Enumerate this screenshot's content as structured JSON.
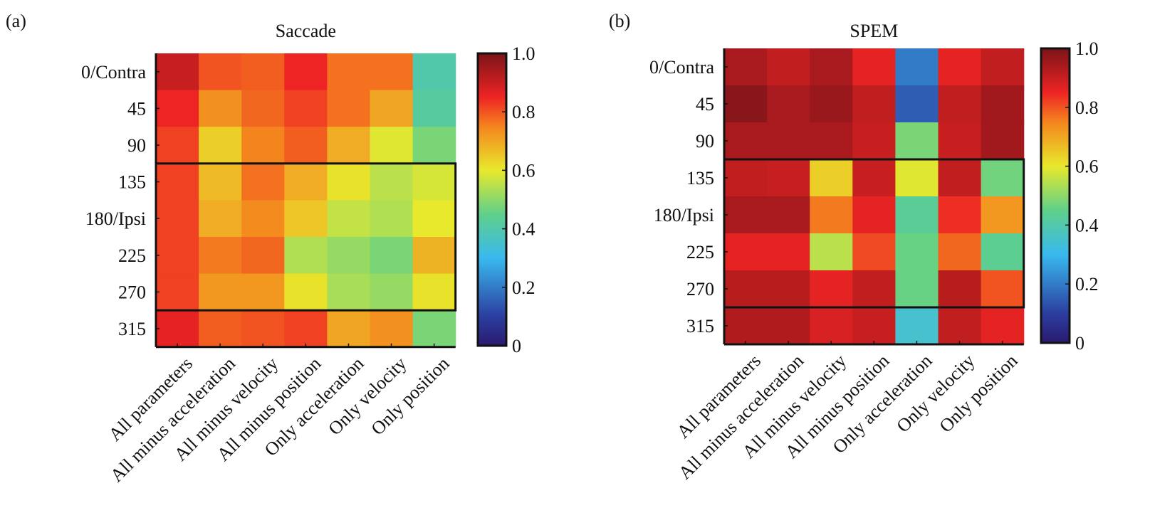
{
  "chart_data": [
    {
      "type": "heatmap",
      "panel_label": "(a)",
      "title": "Saccade",
      "rows": [
        "0/Contra",
        "45",
        "90",
        "135",
        "180/Ipsi",
        "225",
        "270",
        "315"
      ],
      "columns": [
        "All parameters",
        "All minus acceleration",
        "All minus velocity",
        "All minus position",
        "Only acceleration",
        "Only velocity",
        "Only position"
      ],
      "values": [
        [
          0.9,
          0.8,
          0.79,
          0.85,
          0.77,
          0.77,
          0.4
        ],
        [
          0.85,
          0.73,
          0.78,
          0.82,
          0.77,
          0.7,
          0.42
        ],
        [
          0.82,
          0.64,
          0.75,
          0.79,
          0.69,
          0.59,
          0.48
        ],
        [
          0.82,
          0.67,
          0.77,
          0.69,
          0.61,
          0.55,
          0.58
        ],
        [
          0.82,
          0.69,
          0.74,
          0.65,
          0.56,
          0.54,
          0.6
        ],
        [
          0.82,
          0.76,
          0.78,
          0.54,
          0.51,
          0.48,
          0.68
        ],
        [
          0.82,
          0.72,
          0.72,
          0.61,
          0.53,
          0.51,
          0.61
        ],
        [
          0.86,
          0.79,
          0.8,
          0.82,
          0.7,
          0.73,
          0.48
        ]
      ],
      "highlight_rows": [
        3,
        6
      ],
      "colorbar": {
        "min": 0,
        "max": 1,
        "ticks": [
          "0",
          "0.2",
          "0.4",
          "0.6",
          "0.8",
          "1.0"
        ]
      }
    },
    {
      "type": "heatmap",
      "panel_label": "(b)",
      "title": "SPEM",
      "rows": [
        "0/Contra",
        "45",
        "90",
        "135",
        "180/Ipsi",
        "225",
        "270",
        "315"
      ],
      "columns": [
        "All parameters",
        "All minus acceleration",
        "All minus velocity",
        "All minus position",
        "Only acceleration",
        "Only velocity",
        "Only position"
      ],
      "values": [
        [
          0.94,
          0.91,
          0.94,
          0.86,
          0.2,
          0.86,
          0.91
        ],
        [
          0.98,
          0.94,
          0.96,
          0.91,
          0.15,
          0.91,
          0.95
        ],
        [
          0.94,
          0.94,
          0.94,
          0.9,
          0.48,
          0.9,
          0.95
        ],
        [
          0.91,
          0.9,
          0.64,
          0.9,
          0.59,
          0.91,
          0.47
        ],
        [
          0.94,
          0.94,
          0.76,
          0.86,
          0.43,
          0.84,
          0.72
        ],
        [
          0.86,
          0.86,
          0.55,
          0.81,
          0.46,
          0.78,
          0.44
        ],
        [
          0.92,
          0.92,
          0.86,
          0.91,
          0.46,
          0.92,
          0.8
        ],
        [
          0.93,
          0.93,
          0.88,
          0.9,
          0.35,
          0.91,
          0.86
        ]
      ],
      "highlight_rows": [
        3,
        6
      ],
      "colorbar": {
        "min": 0,
        "max": 1,
        "ticks": [
          "0",
          "0.2",
          "0.4",
          "0.6",
          "0.8",
          "1.0"
        ]
      }
    }
  ]
}
